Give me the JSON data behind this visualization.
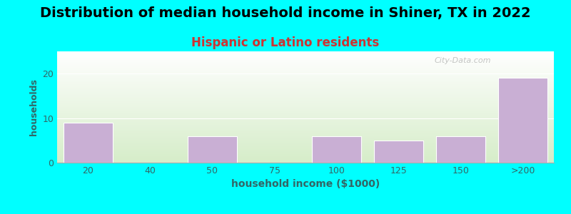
{
  "title": "Distribution of median household income in Shiner, TX in 2022",
  "subtitle": "Hispanic or Latino residents",
  "xlabel": "household income ($1000)",
  "ylabel": "households",
  "categories": [
    "20",
    "40",
    "50",
    "75",
    "100",
    "125",
    "150",
    ">200"
  ],
  "values": [
    9,
    0,
    6,
    0,
    6,
    5,
    6,
    19
  ],
  "bar_color": "#c9afd4",
  "bar_edgecolor": "#ffffff",
  "bg_outer": "#00FFFF",
  "bg_inner_top": "#ffffff",
  "bg_inner_bottom": "#d6edc9",
  "title_color": "#000000",
  "subtitle_color": "#cc3333",
  "axis_label_color": "#336666",
  "tick_color": "#336666",
  "ylim": [
    0,
    25
  ],
  "yticks": [
    0,
    10,
    20
  ],
  "watermark": "City-Data.com",
  "title_fontsize": 14,
  "subtitle_fontsize": 12
}
